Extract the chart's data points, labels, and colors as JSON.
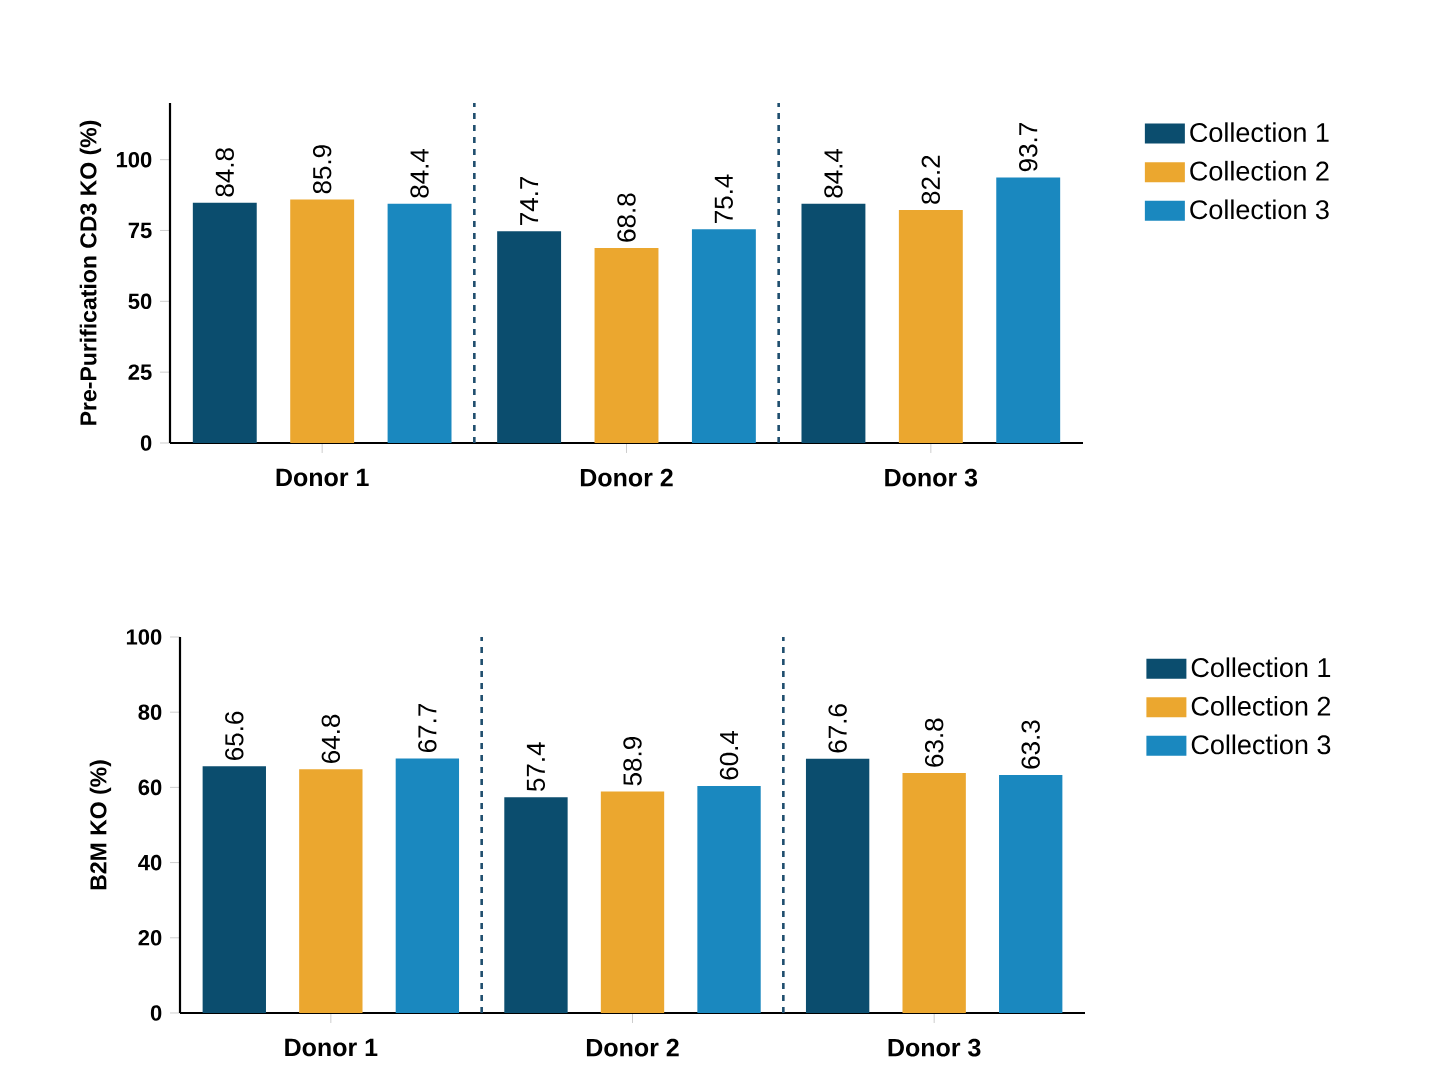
{
  "chart_data": [
    {
      "type": "bar",
      "ylabel": "Pre-Purification CD3 KO (%)",
      "categories": [
        "Donor 1",
        "Donor 2",
        "Donor 3"
      ],
      "series": [
        {
          "name": "Collection 1",
          "color": "#0b4d6e",
          "values": [
            84.8,
            74.7,
            84.4
          ]
        },
        {
          "name": "Collection 2",
          "color": "#eba72f",
          "values": [
            85.9,
            68.8,
            82.2
          ]
        },
        {
          "name": "Collection 3",
          "color": "#1a88bf",
          "values": [
            84.4,
            75.4,
            93.7
          ]
        }
      ],
      "ylim": [
        0,
        120
      ],
      "yticks": [
        0,
        25,
        50,
        75,
        100
      ],
      "data_labels": true,
      "legend": "top right"
    },
    {
      "type": "bar",
      "ylabel": "B2M KO (%)",
      "categories": [
        "Donor 1",
        "Donor 2",
        "Donor 3"
      ],
      "series": [
        {
          "name": "Collection 1",
          "color": "#0b4d6e",
          "values": [
            65.6,
            57.4,
            67.6
          ]
        },
        {
          "name": "Collection 2",
          "color": "#eba72f",
          "values": [
            64.8,
            58.9,
            63.8
          ]
        },
        {
          "name": "Collection 3",
          "color": "#1a88bf",
          "values": [
            67.7,
            60.4,
            63.3
          ]
        }
      ],
      "ylim": [
        0,
        100
      ],
      "yticks": [
        0,
        20,
        40,
        60,
        80,
        100
      ],
      "data_labels": true,
      "legend": "top right"
    }
  ]
}
